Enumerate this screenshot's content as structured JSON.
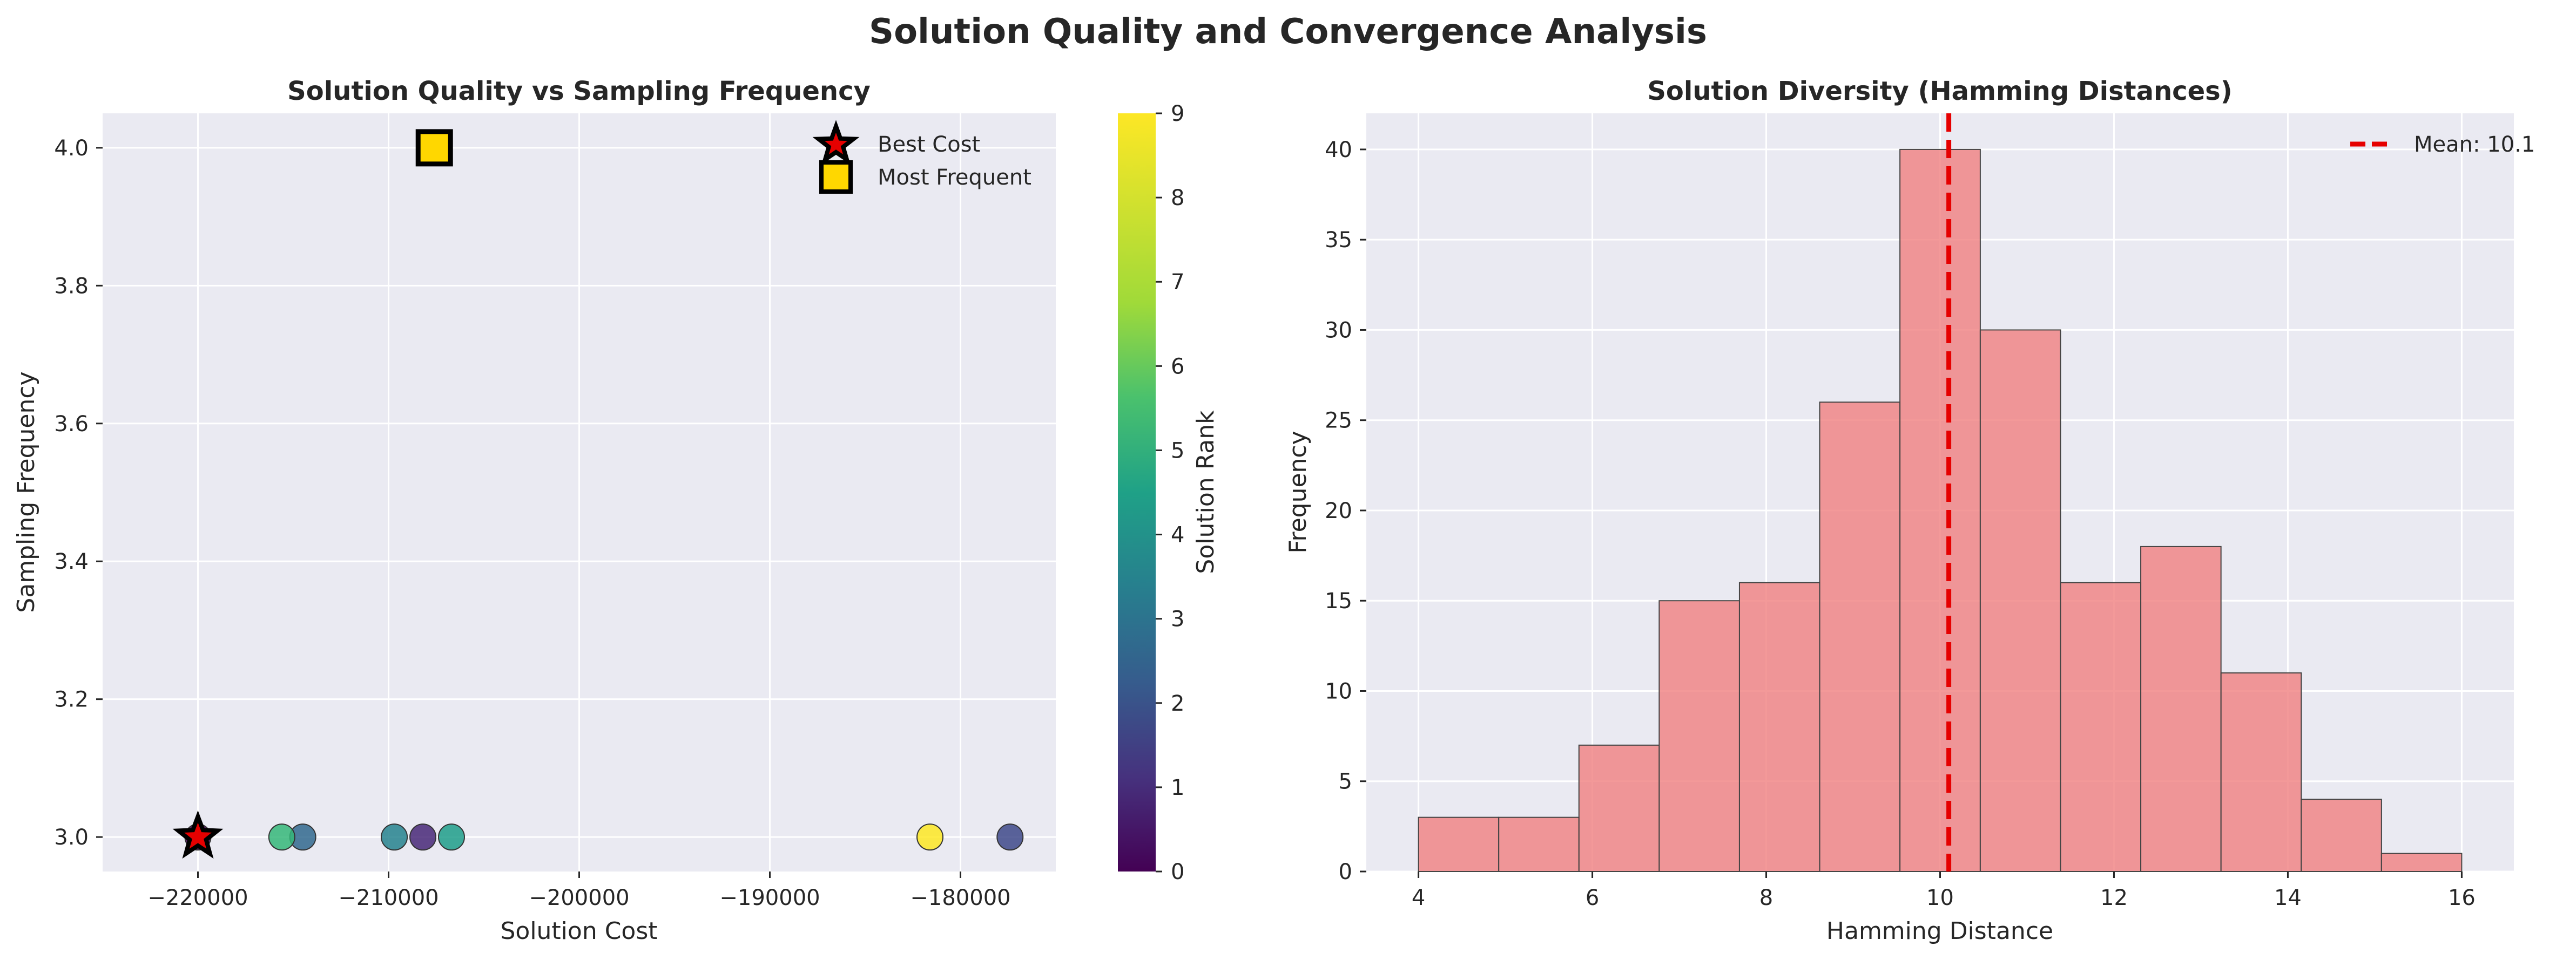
{
  "figure": {
    "title": "Solution Quality and Convergence Analysis"
  },
  "colors": {
    "panel_bg": "#eaeaf2",
    "grid": "#ffffff",
    "hist_fill": "#f08080",
    "mean_line": "#e60000",
    "star": "#e60000",
    "square": "#ffd700"
  },
  "chart_data": [
    {
      "type": "scatter",
      "title": "Solution Quality vs Sampling Frequency",
      "xlabel": "Solution Cost",
      "ylabel": "Sampling Frequency",
      "xlim": [
        -225000,
        -175000
      ],
      "ylim": [
        2.95,
        4.05
      ],
      "xticks": [
        -220000,
        -210000,
        -200000,
        -190000,
        -180000
      ],
      "xtick_labels": [
        "−220000",
        "−210000",
        "−200000",
        "−190000",
        "−180000"
      ],
      "yticks": [
        3.0,
        3.2,
        3.4,
        3.6,
        3.8,
        4.0
      ],
      "ytick_labels": [
        "3.0",
        "3.2",
        "3.4",
        "3.6",
        "3.8",
        "4.0"
      ],
      "grid": true,
      "colormap": "viridis",
      "points": [
        {
          "x": -220000,
          "y": 3.0,
          "rank": 0
        },
        {
          "x": -208200,
          "y": 3.0,
          "rank": 1
        },
        {
          "x": -177400,
          "y": 3.0,
          "rank": 2
        },
        {
          "x": -214500,
          "y": 3.0,
          "rank": 3
        },
        {
          "x": -209700,
          "y": 3.0,
          "rank": 4
        },
        {
          "x": -206700,
          "y": 3.0,
          "rank": 5
        },
        {
          "x": -215600,
          "y": 3.0,
          "rank": 6
        },
        {
          "x": -181600,
          "y": 3.0,
          "rank": 9
        }
      ],
      "best_cost": {
        "x": -220000,
        "y": 3.0,
        "label": "Best Cost"
      },
      "most_frequent": {
        "x": -207600,
        "y": 4.0,
        "label": "Most Frequent"
      },
      "legend_position": "top-right",
      "colorbar": {
        "label": "Solution Rank",
        "min": 0,
        "max": 9,
        "ticks": [
          "0",
          "1",
          "2",
          "3",
          "4",
          "5",
          "6",
          "7",
          "8",
          "9"
        ]
      }
    },
    {
      "type": "bar",
      "title": "Solution Diversity (Hamming Distances)",
      "xlabel": "Hamming Distance",
      "ylabel": "Frequency",
      "xlim": [
        3.4,
        16.6
      ],
      "ylim": [
        0,
        42
      ],
      "xticks": [
        4,
        6,
        8,
        10,
        12,
        14,
        16
      ],
      "xtick_labels": [
        "4",
        "6",
        "8",
        "10",
        "12",
        "14",
        "16"
      ],
      "yticks": [
        0,
        5,
        10,
        15,
        20,
        25,
        30,
        35,
        40
      ],
      "ytick_labels": [
        "0",
        "5",
        "10",
        "15",
        "20",
        "25",
        "30",
        "35",
        "40"
      ],
      "grid": true,
      "bin_edges": [
        4.0,
        4.923,
        5.846,
        6.769,
        7.692,
        8.615,
        9.538,
        10.462,
        11.385,
        12.308,
        13.231,
        14.154,
        15.077,
        16.0
      ],
      "counts": [
        3,
        3,
        7,
        15,
        16,
        26,
        40,
        30,
        16,
        18,
        11,
        4,
        1
      ],
      "mean": 10.1,
      "mean_label": "Mean: 10.1",
      "legend_position": "top-right"
    }
  ]
}
